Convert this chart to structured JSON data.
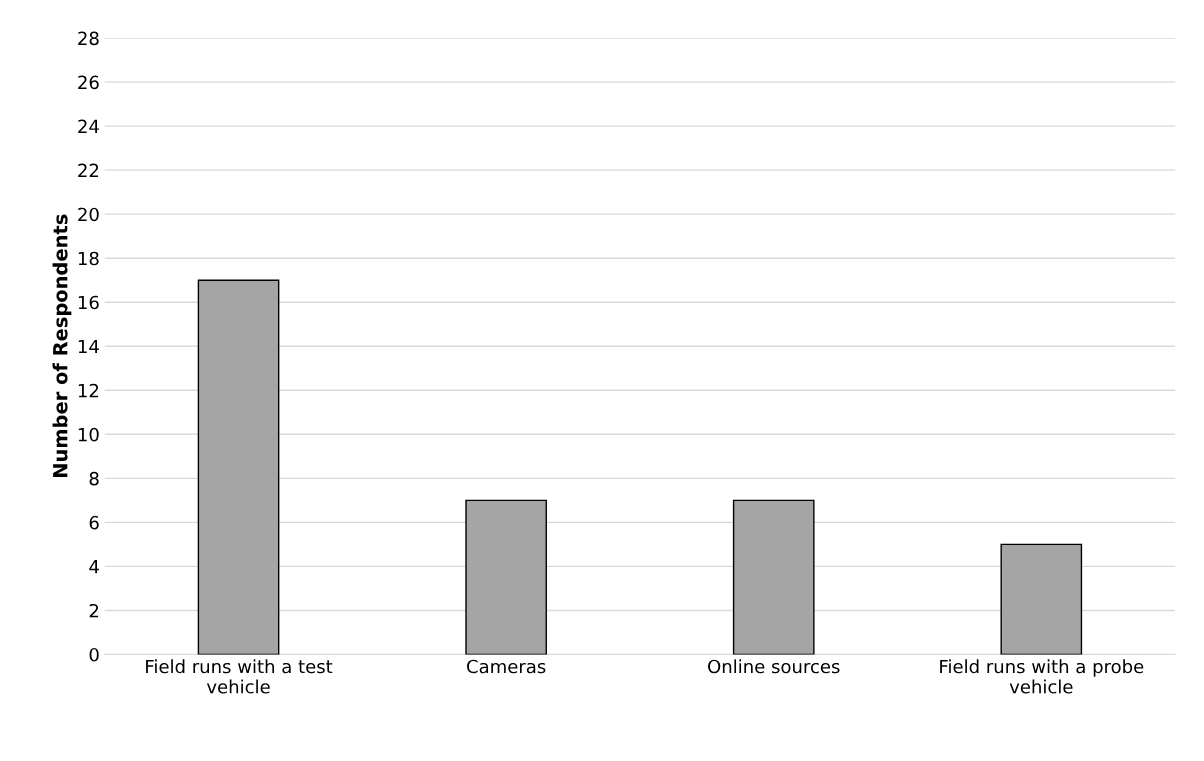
{
  "chart_data": {
    "type": "bar",
    "ylabel": "Number of Respondents",
    "categories": [
      "Field runs with a test\nvehicle",
      "Cameras",
      "Online sources",
      "Field runs with a probe\nvehicle"
    ],
    "values": [
      17,
      7,
      7,
      5
    ],
    "color": "#a5a5a5",
    "ylim": [
      0,
      28
    ],
    "yticks": [
      0,
      2,
      4,
      6,
      8,
      10,
      12,
      14,
      16,
      18,
      20,
      22,
      24,
      26,
      28
    ],
    "grid": "y"
  }
}
